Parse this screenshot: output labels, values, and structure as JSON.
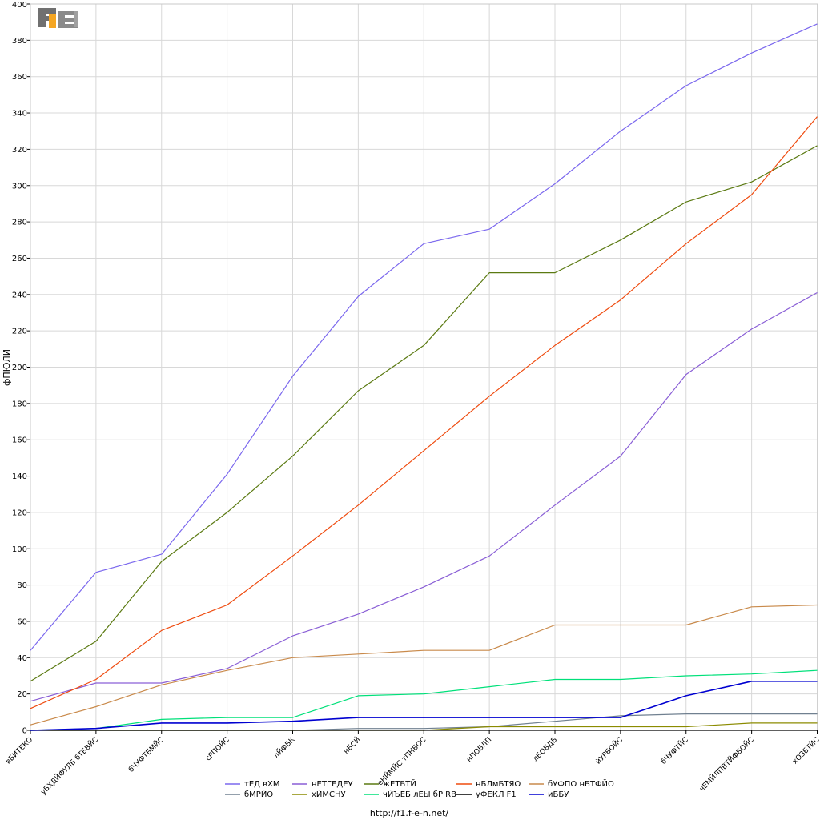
{
  "logo_text": "F1EN",
  "footer_url": "http://f1.f-e-n.net/",
  "chart_data": {
    "type": "line",
    "xlabel": "",
    "ylabel": "фПЮЛИ",
    "ylim": [
      0,
      400
    ],
    "yticks": [
      0,
      20,
      40,
      60,
      80,
      100,
      120,
      140,
      160,
      180,
      200,
      220,
      240,
      260,
      280,
      300,
      320,
      340,
      360,
      380,
      400
    ],
    "grid": true,
    "legend_position": "bottom-center",
    "categories": [
      "вБИТЕКО",
      "уБХДЙФУЛБ бТБВЙС",
      "бЧУФТБМЙС",
      "сРПОЙС",
      "лЙФБК",
      "нБСЙ",
      "еНЙМЙС тПНБОС",
      "нПОБЛП",
      "лБОБДБ",
      "йУРБОЙС",
      "бЧУФТЙС",
      "чЕМЙЛПВТЙФБОЙС",
      "хОЗБТЙС"
    ],
    "series": [
      {
        "name": "тЕД вХМ",
        "color": "#7b68ee",
        "values": [
          44,
          87,
          97,
          141,
          195,
          239,
          268,
          276,
          301,
          330,
          355,
          373,
          389
        ]
      },
      {
        "name": "нЕТГЕДЕУ",
        "color": "#8a5fd6",
        "values": [
          16,
          26,
          26,
          34,
          52,
          64,
          79,
          96,
          124,
          151,
          196,
          221,
          241
        ]
      },
      {
        "name": "жЕТБТЙ",
        "color": "#5b7a12",
        "values": [
          27,
          49,
          93,
          120,
          151,
          187,
          212,
          252,
          252,
          270,
          291,
          302,
          322
        ]
      },
      {
        "name": "нБЛмБТЯО",
        "color": "#ef4b0f",
        "values": [
          12,
          28,
          55,
          69,
          96,
          124,
          154,
          184,
          212,
          237,
          268,
          295,
          338
        ]
      },
      {
        "name": "бУФПО нБТФЙО",
        "color": "#c98a4b",
        "values": [
          3,
          13,
          25,
          33,
          40,
          42,
          44,
          44,
          58,
          58,
          58,
          68,
          69
        ]
      },
      {
        "name": "бМРЙО",
        "color": "#708090",
        "values": [
          0,
          0,
          0,
          0,
          0,
          1,
          1,
          2,
          5,
          8,
          9,
          9,
          9
        ]
      },
      {
        "name": "хЙМСНУ",
        "color": "#8b8b00",
        "values": [
          0,
          0,
          0,
          0,
          0,
          0,
          0,
          2,
          2,
          2,
          2,
          4,
          4
        ]
      },
      {
        "name": "чЙЪЕБ лЕЫ бР RB",
        "color": "#00e07a",
        "values": [
          0,
          1,
          6,
          7,
          7,
          19,
          20,
          24,
          28,
          28,
          30,
          31,
          33
        ]
      },
      {
        "name": "уФЕКЛ F1",
        "color": "#000000",
        "values": [
          0,
          0,
          0,
          0,
          0,
          0,
          0,
          0,
          0,
          0,
          0,
          0,
          0
        ]
      },
      {
        "name": "иББУ",
        "color": "#0000d0",
        "values": [
          0,
          1,
          4,
          4,
          5,
          7,
          7,
          7,
          7,
          7,
          19,
          27,
          27
        ]
      }
    ]
  }
}
